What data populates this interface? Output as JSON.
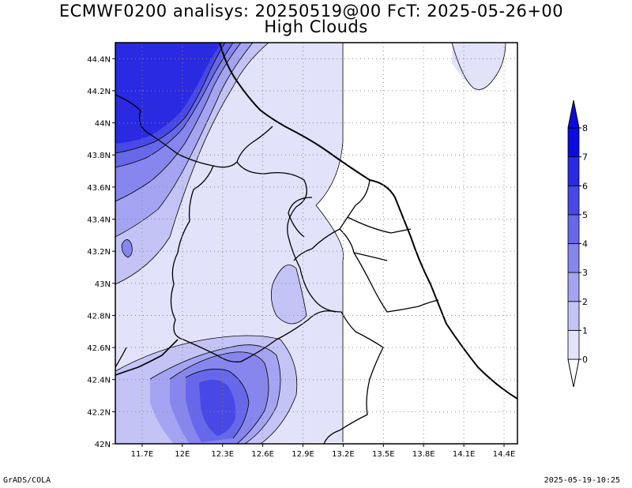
{
  "title_line1": "ECMWF0200 analisys: 20250519@00 FcT: 2025-05-26+00",
  "title_line2": "High Clouds",
  "footer_left": "GrADS/COLA",
  "footer_right": "2025-05-19-10:25",
  "map": {
    "lon_range": [
      11.5,
      14.5
    ],
    "lat_range": [
      42.0,
      44.5
    ],
    "lon_ticks": [
      "11.7E",
      "12E",
      "12.3E",
      "12.6E",
      "12.9E",
      "13.2E",
      "13.5E",
      "13.8E",
      "14.1E",
      "14.4E"
    ],
    "lat_ticks": [
      "42N",
      "42.2N",
      "42.4N",
      "42.6N",
      "42.8N",
      "43N",
      "43.2N",
      "43.4N",
      "43.6N",
      "43.8N",
      "44N",
      "44.2N",
      "44.4N"
    ],
    "grid": true
  },
  "colorbar": {
    "levels": [
      "0",
      "1",
      "2",
      "3",
      "4",
      "5",
      "6",
      "7",
      "8"
    ],
    "colors": [
      "#ffffff",
      "#e2e2fb",
      "#c3c3f6",
      "#a4a4f2",
      "#8686ee",
      "#6767ea",
      "#4848e6",
      "#2a2ae2",
      "#0b0bde"
    ]
  }
}
